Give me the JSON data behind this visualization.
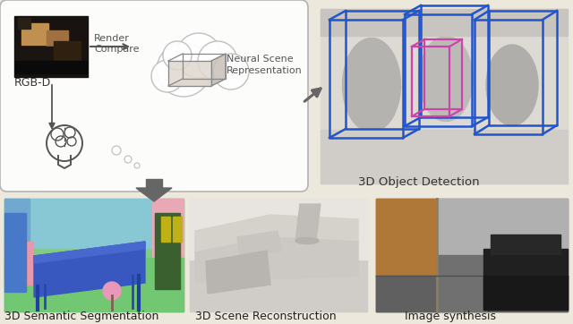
{
  "background_color": "#ede8dc",
  "labels": {
    "rgb_d": "RGB-D",
    "render": "Render",
    "compare": "Compare",
    "neural": "Neural Scene\nRepresentation",
    "detection": "3D Object Detection",
    "segmentation": "3D Semantic Segmentation",
    "reconstruction": "3D Scene Reconstruction",
    "synthesis": "Image synthesis"
  },
  "label_fontsize": 9,
  "thought_circles": [
    [
      130,
      168,
      5
    ],
    [
      143,
      178,
      4
    ],
    [
      153,
      185,
      3
    ]
  ],
  "cloud_circles": [
    [
      205,
      78,
      30
    ],
    [
      222,
      62,
      25
    ],
    [
      243,
      68,
      22
    ],
    [
      258,
      80,
      20
    ],
    [
      187,
      85,
      18
    ],
    [
      198,
      62,
      16
    ]
  ]
}
